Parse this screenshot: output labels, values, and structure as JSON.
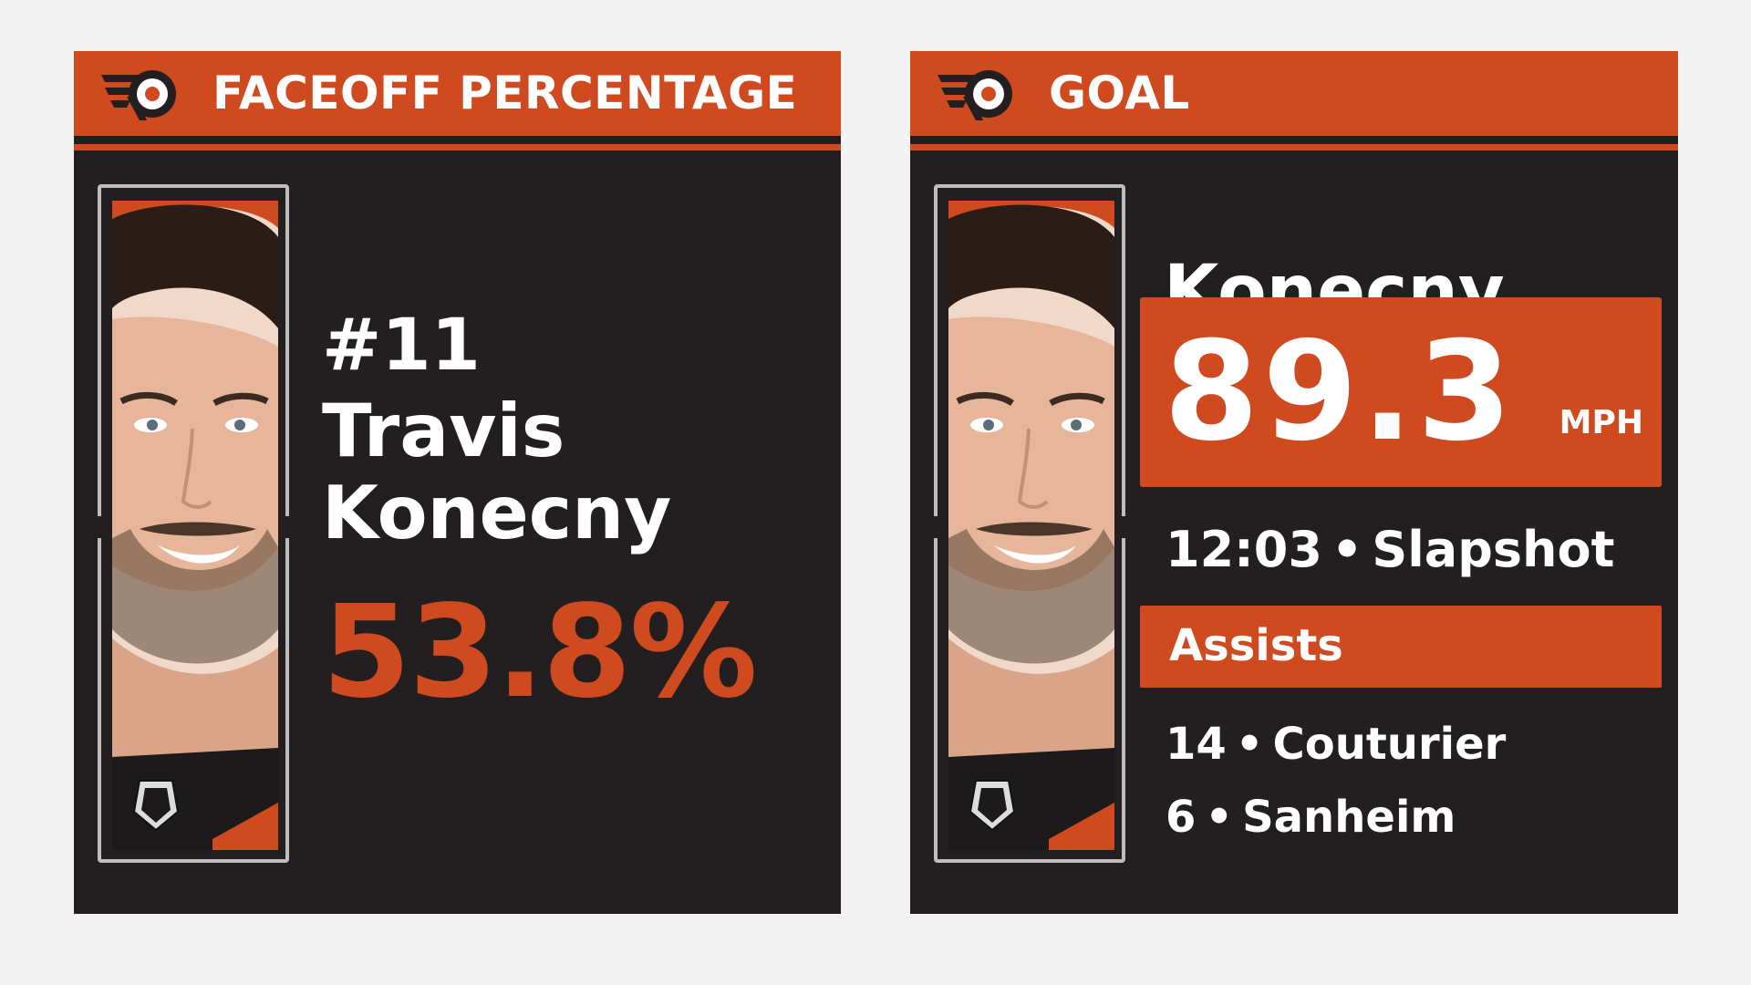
{
  "colors": {
    "accent": "#d04a20",
    "panel": "#231f20",
    "background": "#f3f3f3",
    "frame": "#bdbdbd"
  },
  "left_card": {
    "header_title": "FACEOFF PERCENTAGE",
    "logo_icon": "flyers-logo-icon",
    "player_number": "#11",
    "player_first_name": "Travis",
    "player_last_name": "Konecny",
    "faceoff_percentage": "53.8%"
  },
  "right_card": {
    "header_title": "GOAL",
    "logo_icon": "flyers-logo-icon",
    "player_last_name": "Konecny",
    "shot_speed": "89.3",
    "shot_speed_unit": "MPH",
    "goal_time": "12:03",
    "separator": "•",
    "shot_type": "Slapshot",
    "assists_label": "Assists",
    "assists": [
      {
        "number": "14",
        "name": "Couturier"
      },
      {
        "number": "6",
        "name": "Sanheim"
      }
    ]
  }
}
